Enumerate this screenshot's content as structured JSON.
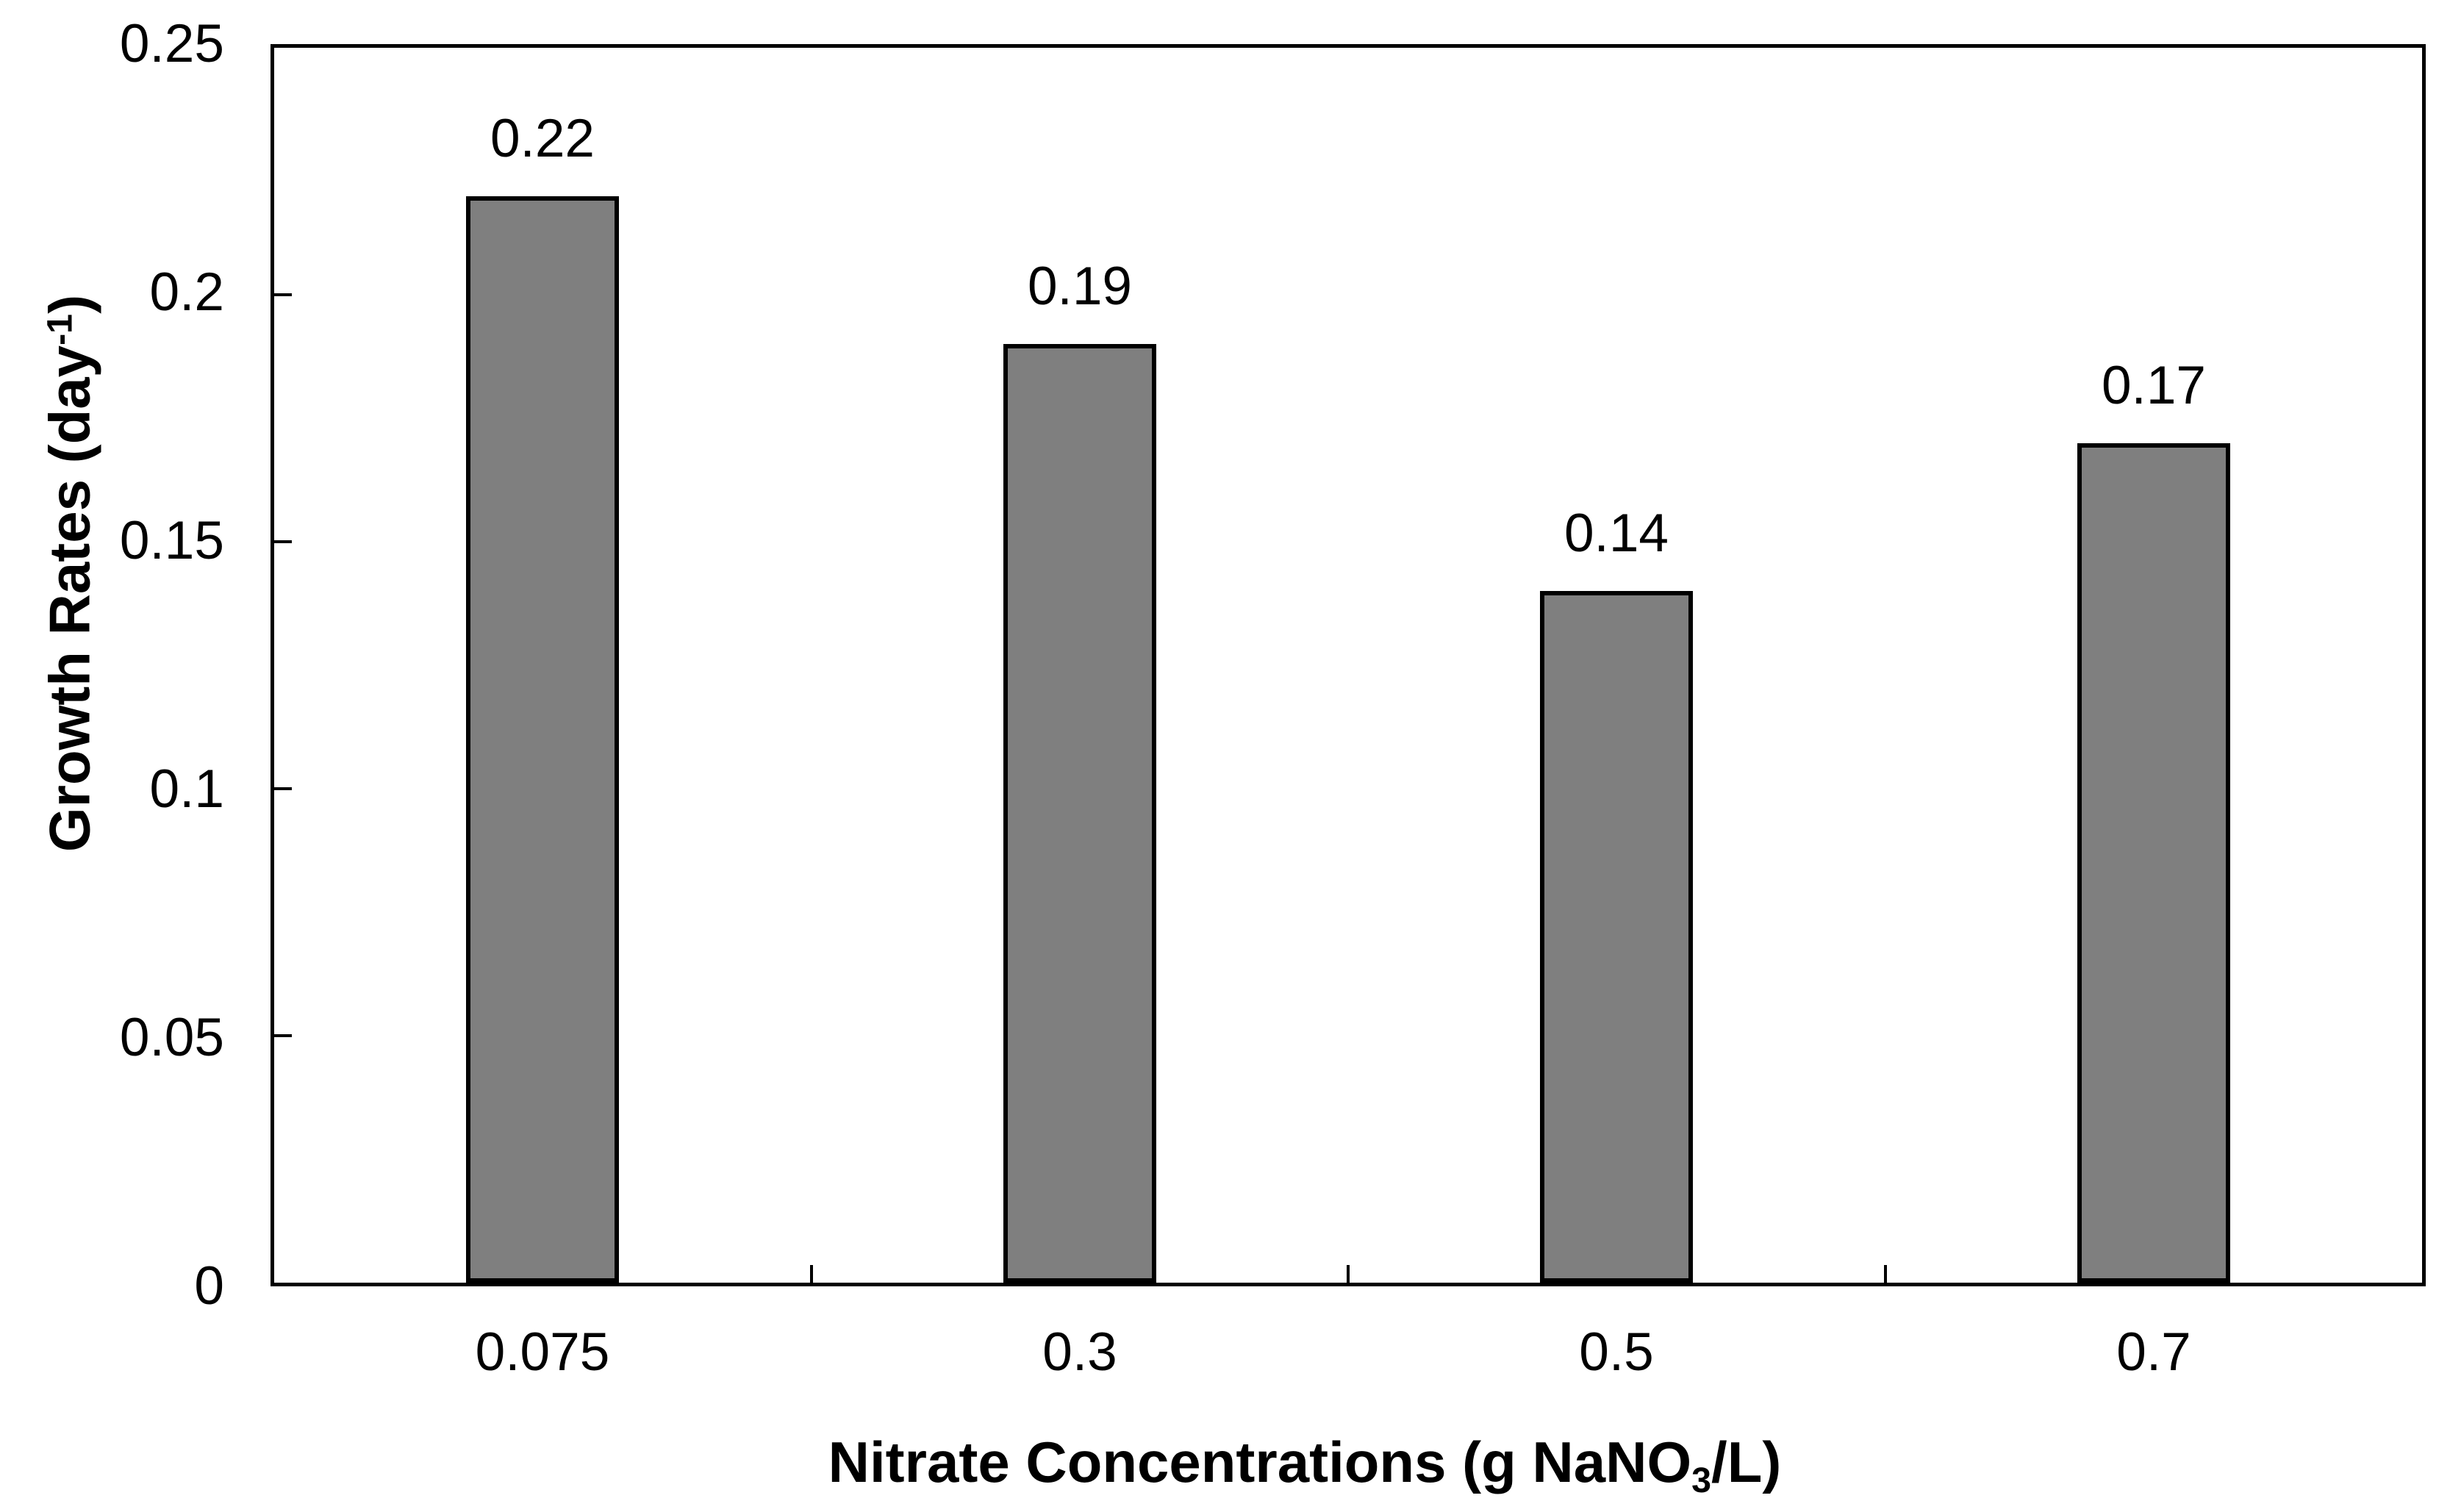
{
  "chart_data": {
    "type": "bar",
    "title": "",
    "categories": [
      "0.075",
      "0.3",
      "0.5",
      "0.7"
    ],
    "values": [
      0.22,
      0.19,
      0.14,
      0.17
    ],
    "data_labels": [
      "0.22",
      "0.19",
      "0.14",
      "0.17"
    ],
    "xlabel": "Nitrate Concentrations (g NaNO3/L)",
    "xlabel_parts": {
      "main": "Nitrate Concentrations (g NaNO",
      "sub": "3",
      "close": "/L)"
    },
    "ylabel": "Growth Rates (day-1)",
    "ylabel_parts": {
      "main": "Growth Rates (day",
      "sup": "-1",
      "close": ")"
    },
    "ylim": [
      0,
      0.25
    ],
    "y_ticks": [
      {
        "label": "0.25",
        "value": 0.25
      },
      {
        "label": "0.2",
        "value": 0.2
      },
      {
        "label": "0.15",
        "value": 0.15
      },
      {
        "label": "0.1",
        "value": 0.1
      },
      {
        "label": "0.05",
        "value": 0.05
      },
      {
        "label": "0",
        "value": 0
      }
    ],
    "bar_color": "#7f7f7f",
    "bar_border_color": "#000000",
    "axis_color": "#000000",
    "background_color": "#ffffff",
    "grid": "off",
    "legend": "none"
  }
}
